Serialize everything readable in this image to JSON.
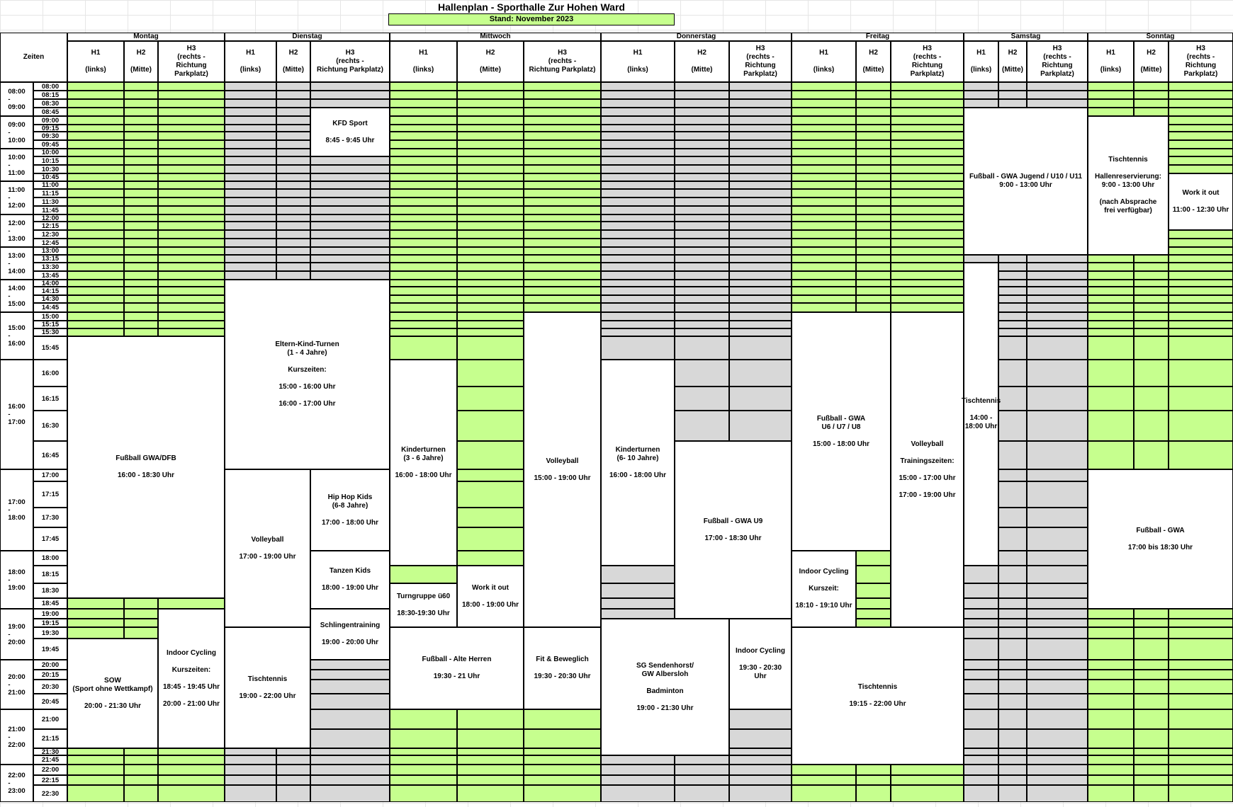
{
  "title": "Hallenplan - Sporthalle Zur Hohen Ward",
  "stand": "Stand: November 2023",
  "zeiten_label": "Zeiten",
  "days": [
    "Montag",
    "Dienstag",
    "Mittwoch",
    "Donnerstag",
    "Freitag",
    "Samstag",
    "Sonntag"
  ],
  "halls": [
    "H1\n\n(links)",
    "H2\n\n(Mitte)",
    "H3\n(rechts -\nRichtung\nParkplatz)"
  ],
  "hall_headers_alt": {
    "dienstag_h3": "H3\n(rechts -\nRichtung Parkplatz)",
    "mittwoch_h3": "H3\n(rechts -\nRichtung Parkplatz)"
  },
  "slots": [
    "08:00",
    "08:15",
    "08:30",
    "08:45",
    "09:00",
    "09:15",
    "09:30",
    "09:45",
    "10:00",
    "10:15",
    "10:30",
    "10:45",
    "11:00",
    "11:15",
    "11:30",
    "11:45",
    "12:00",
    "12:15",
    "12:30",
    "12:45",
    "13:00",
    "13:15",
    "13:30",
    "13:45",
    "14:00",
    "14:15",
    "14:30",
    "14:45",
    "15:00",
    "15:15",
    "15:30",
    "15:45",
    "16:00",
    "16:15",
    "16:30",
    "16:45",
    "17:00",
    "17:15",
    "17:30",
    "17:45",
    "18:00",
    "18:15",
    "18:30",
    "18:45",
    "19:00",
    "19:15",
    "19:30",
    "19:45",
    "20:00",
    "20:15",
    "20:30",
    "20:45",
    "21:00",
    "21:15",
    "21:30",
    "21:45",
    "22:00",
    "22:15",
    "22:30"
  ],
  "hours": [
    "08:00\n-\n09:00",
    "09:00\n-\n10:00",
    "10:00\n-\n11:00",
    "11:00\n-\n12:00",
    "12:00\n-\n13:00",
    "13:00\n-\n14:00",
    "14:00\n-\n15:00",
    "15:00\n-\n16:00",
    "16:00\n-\n17:00",
    "17:00\n-\n18:00",
    "18:00\n-\n19:00",
    "19:00\n-\n20:00",
    "20:00\n-\n21:00",
    "21:00\n-\n22:00",
    "22:00\n-\n23:00"
  ],
  "colors": {
    "free": "#c6ff8e",
    "closed": "#d8d8d8",
    "event": "#ffffff"
  },
  "default_fill": [
    "free",
    "closed",
    "free",
    "closed",
    "free",
    "closed",
    "free"
  ],
  "fills": [
    {
      "day": 0,
      "hall": 0,
      "from": 43,
      "to": 46,
      "state": "free"
    },
    {
      "day": 0,
      "hall": 1,
      "from": 43,
      "to": 46,
      "state": "free"
    },
    {
      "day": 0,
      "hall": 2,
      "from": 43,
      "to": 43,
      "state": "free"
    },
    {
      "day": 0,
      "hall": 0,
      "from": 54,
      "to": 58,
      "state": "free"
    },
    {
      "day": 0,
      "hall": 1,
      "from": 54,
      "to": 58,
      "state": "free"
    },
    {
      "day": 0,
      "hall": 2,
      "from": 54,
      "to": 58,
      "state": "free"
    },
    {
      "day": 1,
      "hall": 0,
      "from": 54,
      "to": 58,
      "state": "closed"
    },
    {
      "day": 1,
      "hall": 2,
      "from": 48,
      "to": 58,
      "state": "closed"
    },
    {
      "day": 1,
      "hall": 1,
      "from": 55,
      "to": 58,
      "state": "closed"
    },
    {
      "day": 2,
      "hall": 0,
      "from": 31,
      "to": 31,
      "state": "free"
    },
    {
      "day": 2,
      "hall": 1,
      "from": 31,
      "to": 40,
      "state": "free"
    },
    {
      "day": 2,
      "hall": 0,
      "from": 41,
      "to": 41,
      "state": "free"
    },
    {
      "day": 2,
      "hall": 1,
      "from": 46,
      "to": 46,
      "state": "free"
    },
    {
      "day": 2,
      "hall": 2,
      "from": 52,
      "to": 58,
      "state": "free"
    },
    {
      "day": 2,
      "hall": 0,
      "from": 53,
      "to": 58,
      "state": "free"
    },
    {
      "day": 2,
      "hall": 1,
      "from": 53,
      "to": 58,
      "state": "free"
    },
    {
      "day": 3,
      "hall": 0,
      "from": 41,
      "to": 42,
      "state": "closed"
    },
    {
      "day": 3,
      "hall": 0,
      "from": 55,
      "to": 58,
      "state": "closed"
    },
    {
      "day": 3,
      "hall": 1,
      "from": 55,
      "to": 58,
      "state": "closed"
    },
    {
      "day": 3,
      "hall": 2,
      "from": 52,
      "to": 58,
      "state": "closed"
    },
    {
      "day": 4,
      "hall": 1,
      "from": 40,
      "to": 45,
      "state": "free"
    },
    {
      "day": 4,
      "hall": 0,
      "from": 56,
      "to": 58,
      "state": "free"
    },
    {
      "day": 4,
      "hall": 1,
      "from": 56,
      "to": 58,
      "state": "free"
    },
    {
      "day": 4,
      "hall": 2,
      "from": 56,
      "to": 58,
      "state": "free"
    },
    {
      "day": 5,
      "hall": 0,
      "from": 0,
      "to": 2,
      "state": "closed"
    },
    {
      "day": 5,
      "hall": 1,
      "from": 0,
      "to": 2,
      "state": "closed"
    },
    {
      "day": 5,
      "hall": 2,
      "from": 0,
      "to": 2,
      "state": "closed"
    },
    {
      "day": 5,
      "hall": 1,
      "from": 21,
      "to": 58,
      "state": "closed"
    },
    {
      "day": 6,
      "hall": 0,
      "from": 0,
      "to": 3,
      "state": "free"
    },
    {
      "day": 6,
      "hall": 1,
      "from": 0,
      "to": 3,
      "state": "free"
    },
    {
      "day": 6,
      "hall": 2,
      "from": 0,
      "to": 10,
      "state": "free"
    },
    {
      "day": 6,
      "hall": 0,
      "from": 21,
      "to": 35,
      "state": "free"
    },
    {
      "day": 6,
      "hall": 1,
      "from": 21,
      "to": 35,
      "state": "free"
    },
    {
      "day": 6,
      "hall": 2,
      "from": 18,
      "to": 35,
      "state": "free"
    },
    {
      "day": 6,
      "hall": 0,
      "from": 44,
      "to": 58,
      "state": "free"
    },
    {
      "day": 6,
      "hall": 1,
      "from": 44,
      "to": 58,
      "state": "free"
    },
    {
      "day": 6,
      "hall": 2,
      "from": 44,
      "to": 58,
      "state": "free"
    },
    {
      "day": 2,
      "hall": 0,
      "from": 0,
      "to": 30,
      "state": "free"
    },
    {
      "day": 2,
      "hall": 1,
      "from": 0,
      "to": 30,
      "state": "free"
    },
    {
      "day": 2,
      "hall": 2,
      "from": 0,
      "to": 27,
      "state": "free"
    }
  ],
  "events": [
    {
      "day": 1,
      "hall": 2,
      "span": 1,
      "from": 3,
      "to": 8,
      "name": "kfd-sport",
      "text": "KFD Sport\n\n8:45 - 9:45 Uhr"
    },
    {
      "day": 1,
      "hall": 0,
      "span": 3,
      "from": 24,
      "to": 35,
      "name": "eltern-kind-turnen",
      "text": "Eltern-Kind-Turnen\n(1 - 4 Jahre)\n\nKurszeiten:\n\n15:00 - 16:00 Uhr\n\n16:00 - 17:00 Uhr"
    },
    {
      "day": 1,
      "hall": 0,
      "span": 2,
      "from": 36,
      "to": 45,
      "name": "volleyball-dienstag",
      "text": "Volleyball\n\n17:00 - 19:00 Uhr"
    },
    {
      "day": 1,
      "hall": 2,
      "span": 1,
      "from": 36,
      "to": 39,
      "name": "hip-hop-kids",
      "text": "Hip Hop Kids\n(6-8 Jahre)\n\n17:00 - 18:00 Uhr"
    },
    {
      "day": 1,
      "hall": 2,
      "span": 1,
      "from": 40,
      "to": 43,
      "name": "tanzen-kids",
      "text": "Tanzen Kids\n\n18:00 - 19:00 Uhr"
    },
    {
      "day": 1,
      "hall": 2,
      "span": 1,
      "from": 44,
      "to": 47,
      "name": "schlingentraining",
      "text": "Schlingentraining\n\n19:00 - 20:00 Uhr"
    },
    {
      "day": 1,
      "hall": 0,
      "span": 2,
      "from": 46,
      "to": 53,
      "name": "tischtennis-dienstag",
      "text": "Tischtennis\n\n19:00 - 22:00 Uhr"
    },
    {
      "day": 0,
      "hall": 0,
      "span": 3,
      "from": 31,
      "to": 42,
      "name": "fussball-gwa-dfb",
      "text": "Fußball GWA/DFB\n\n16:00 - 18:30 Uhr"
    },
    {
      "day": 0,
      "hall": 0,
      "span": 2,
      "from": 47,
      "to": 53,
      "name": "sow",
      "text": "SOW\n(Sport ohne Wettkampf)\n\n20:00 - 21:30 Uhr"
    },
    {
      "day": 0,
      "hall": 2,
      "span": 1,
      "from": 44,
      "to": 53,
      "name": "indoor-cycling-montag",
      "text": "Indoor Cycling\n\nKurszeiten:\n\n18:45 - 19:45 Uhr\n\n20:00 - 21:00 Uhr"
    },
    {
      "day": 2,
      "hall": 0,
      "span": 1,
      "from": 32,
      "to": 40,
      "name": "kinderturnen-mittwoch",
      "text": "Kinderturnen\n(3 - 6 Jahre)\n\n16:00 - 18:00 Uhr"
    },
    {
      "day": 2,
      "hall": 2,
      "span": 1,
      "from": 28,
      "to": 45,
      "name": "volleyball-mittwoch",
      "text": "Volleyball\n\n15:00 - 19:00 Uhr"
    },
    {
      "day": 2,
      "hall": 1,
      "span": 1,
      "from": 41,
      "to": 45,
      "name": "work-it-out-mittwoch",
      "text": "Work it out\n\n18:00 - 19:00 Uhr"
    },
    {
      "day": 2,
      "hall": 0,
      "span": 1,
      "from": 42,
      "to": 45,
      "name": "turngruppe-ue60",
      "text": "Turngruppe ü60\n\n18:30-19:30 Uhr"
    },
    {
      "day": 2,
      "hall": 0,
      "span": 2,
      "from": 46,
      "to": 51,
      "name": "fussball-alte-herren",
      "text": "Fußball - Alte Herren\n\n19:30 - 21 Uhr"
    },
    {
      "day": 2,
      "hall": 2,
      "span": 1,
      "from": 46,
      "to": 51,
      "name": "fit-und-beweglich",
      "text": "Fit & Beweglich\n\n19:30 - 20:30 Uhr"
    },
    {
      "day": 3,
      "hall": 0,
      "span": 1,
      "from": 32,
      "to": 40,
      "name": "kinderturnen-donnerstag",
      "text": "Kinderturnen\n(6- 10 Jahre)\n\n16:00 - 18:00 Uhr"
    },
    {
      "day": 3,
      "hall": 1,
      "span": 2,
      "from": 35,
      "to": 44,
      "name": "fussball-gwa-u9",
      "text": "Fußball - GWA U9\n\n17:00 - 18:30 Uhr"
    },
    {
      "day": 3,
      "hall": 0,
      "span": 2,
      "from": 45,
      "to": 54,
      "name": "sg-sendenhorst",
      "text": "SG Sendenhorst/\nGW Albersloh\n\nBadminton\n\n19:00 - 21:30 Uhr"
    },
    {
      "day": 3,
      "hall": 2,
      "span": 1,
      "from": 45,
      "to": 51,
      "name": "indoor-cycling-donnerstag",
      "text": "Indoor Cycling\n\n19:30 - 20:30\nUhr"
    },
    {
      "day": 4,
      "hall": 0,
      "span": 2,
      "from": 28,
      "to": 39,
      "name": "fussball-gwa-u6-u8",
      "text": "Fußball - GWA\nU6 / U7 / U8\n\n15:00 - 18:00 Uhr"
    },
    {
      "day": 4,
      "hall": 2,
      "span": 1,
      "from": 28,
      "to": 45,
      "name": "volleyball-freitag",
      "text": "Volleyball\n\nTrainingszeiten:\n\n15:00 - 17:00 Uhr\n\n17:00 - 19:00 Uhr"
    },
    {
      "day": 4,
      "hall": 0,
      "span": 1,
      "from": 40,
      "to": 45,
      "name": "indoor-cycling-freitag",
      "text": "Indoor Cycling\n\nKurszeit:\n\n18:10 - 19:10 Uhr"
    },
    {
      "day": 4,
      "hall": 0,
      "span": 3,
      "from": 46,
      "to": 55,
      "name": "tischtennis-freitag",
      "text": "Tischtennis\n\n19:15 - 22:00 Uhr"
    },
    {
      "day": 5,
      "hall": 0,
      "span": 3,
      "from": 3,
      "to": 20,
      "name": "fussball-gwa-jugend",
      "text": "Fußball - GWA Jugend / U10 / U11\n9:00 - 13:00 Uhr"
    },
    {
      "day": 5,
      "hall": 0,
      "span": 1,
      "from": 22,
      "to": 40,
      "name": "tischtennis-samstag",
      "text": "Tischtennis\n\n14:00 - 18:00 Uhr"
    },
    {
      "day": 6,
      "hall": 0,
      "span": 2,
      "from": 4,
      "to": 20,
      "name": "tischtennis-sonntag",
      "text": "Tischtennis\n\nHallenreservierung:\n9:00 - 13:00 Uhr\n\n(nach Absprache\nfrei verfügbar)"
    },
    {
      "day": 6,
      "hall": 2,
      "span": 1,
      "from": 11,
      "to": 17,
      "name": "work-it-out-sonntag",
      "text": "Work it out\n\n11:00 - 12:30 Uhr"
    },
    {
      "day": 6,
      "hall": 0,
      "span": 3,
      "from": 36,
      "to": 43,
      "name": "fussball-gwa-sonntag",
      "text": "Fußball - GWA\n\n17:00 bis 18:30 Uhr"
    }
  ]
}
